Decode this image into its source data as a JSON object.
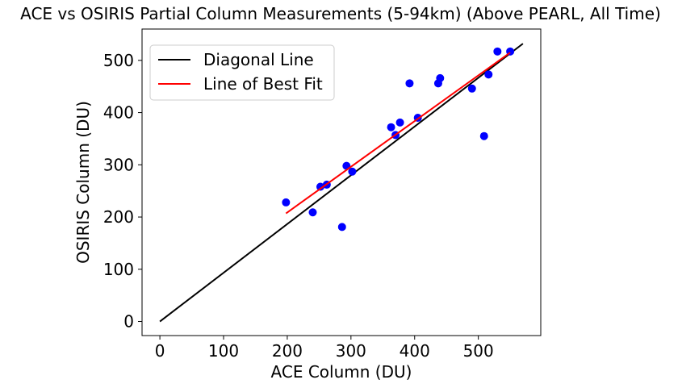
{
  "chart_data": {
    "type": "scatter",
    "title": "ACE vs OSIRIS Partial Column Measurements (5-94km) (Above PEARL, All Time)",
    "xlabel": "ACE Column (DU)",
    "ylabel": "OSIRIS Column (DU)",
    "xlim": [
      -28,
      598
    ],
    "ylim": [
      -27,
      560
    ],
    "xticks": [
      0,
      100,
      200,
      300,
      400,
      500
    ],
    "yticks": [
      0,
      100,
      200,
      300,
      400,
      500
    ],
    "grid": false,
    "legend_position": "top-left",
    "series": [
      {
        "name": "Diagonal Line",
        "kind": "line",
        "color": "#000000",
        "x": [
          0,
          570
        ],
        "y": [
          0,
          532
        ]
      },
      {
        "name": "Line of Best Fit",
        "kind": "line",
        "color": "#ff0000",
        "x": [
          198,
          550
        ],
        "y": [
          207,
          515
        ]
      },
      {
        "name": "",
        "kind": "scatter",
        "color": "#0000ff",
        "x": [
          198,
          240,
          252,
          262,
          286,
          293,
          302,
          363,
          370,
          377,
          392,
          405,
          437,
          440,
          490,
          509,
          516,
          530,
          550
        ],
        "y": [
          228,
          209,
          258,
          262,
          181,
          298,
          287,
          372,
          357,
          381,
          456,
          390,
          456,
          466,
          446,
          355,
          473,
          517,
          517
        ]
      }
    ]
  }
}
